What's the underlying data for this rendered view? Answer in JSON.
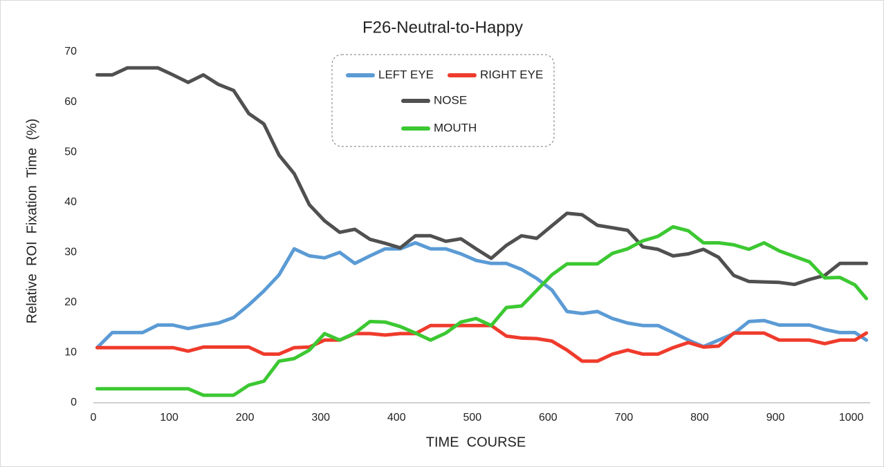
{
  "chart_data": {
    "type": "line",
    "title": "F26-Neutral-to-Happy",
    "xlabel": "TIME  COURSE",
    "ylabel": "Relative  ROI  Fixation  Time  (%)",
    "x": [
      5,
      25,
      45,
      65,
      85,
      105,
      125,
      145,
      165,
      185,
      205,
      225,
      245,
      265,
      285,
      305,
      325,
      345,
      365,
      385,
      405,
      425,
      445,
      465,
      485,
      505,
      525,
      545,
      565,
      585,
      605,
      625,
      645,
      665,
      685,
      705,
      725,
      745,
      765,
      785,
      805,
      825,
      845,
      865,
      885,
      905,
      925,
      945,
      965,
      985,
      1005,
      1020
    ],
    "series": [
      {
        "name": "LEFT EYE",
        "color": "#5b9bd5",
        "values": [
          11,
          14,
          14,
          14,
          15.5,
          15.5,
          14.8,
          15.4,
          15.9,
          17,
          19.5,
          22.3,
          25.5,
          30.7,
          29.3,
          28.9,
          30,
          27.8,
          29.3,
          30.7,
          30.7,
          31.9,
          30.7,
          30.7,
          29.7,
          28.4,
          27.8,
          27.8,
          26.6,
          24.8,
          22.5,
          18.2,
          17.8,
          18.2,
          16.8,
          15.9,
          15.4,
          15.4,
          14,
          12.5,
          11.2,
          12.5,
          13.8,
          16.2,
          16.4,
          15.5,
          15.5,
          15.5,
          14.6,
          14,
          14,
          12.5
        ]
      },
      {
        "name": "RIGHT EYE",
        "color": "#ef3b2c",
        "values": [
          11,
          11,
          11,
          11,
          11,
          11,
          10.3,
          11.1,
          11.1,
          11.1,
          11.1,
          9.7,
          9.7,
          11,
          11.1,
          12.5,
          12.5,
          13.8,
          13.8,
          13.5,
          13.8,
          13.8,
          15.4,
          15.4,
          15.4,
          15.4,
          15.4,
          13.3,
          12.9,
          12.8,
          12.3,
          10.5,
          8.3,
          8.3,
          9.7,
          10.5,
          9.7,
          9.7,
          11,
          12,
          11.1,
          11.3,
          13.9,
          13.9,
          13.9,
          12.5,
          12.5,
          12.5,
          11.8,
          12.5,
          12.5,
          13.9
        ]
      },
      {
        "name": "NOSE",
        "color": "#505050",
        "values": [
          65.4,
          65.4,
          66.8,
          66.8,
          66.8,
          65.4,
          63.9,
          65.4,
          63.5,
          62.3,
          57.7,
          55.6,
          49.4,
          45.7,
          39.5,
          36.3,
          34,
          34.6,
          32.6,
          31.8,
          30.9,
          33.3,
          33.3,
          32.2,
          32.7,
          30.7,
          28.8,
          31.4,
          33.3,
          32.8,
          35.3,
          37.8,
          37.5,
          35.4,
          34.9,
          34.4,
          31.1,
          30.6,
          29.3,
          29.7,
          30.6,
          29,
          25.4,
          24.2,
          24.1,
          24,
          23.6,
          24.6,
          25.4,
          27.8,
          27.8,
          27.8
        ]
      },
      {
        "name": "MOUTH",
        "color": "#3cc832",
        "values": [
          2.8,
          2.8,
          2.8,
          2.8,
          2.8,
          2.8,
          2.8,
          1.5,
          1.5,
          1.5,
          3.5,
          4.3,
          8.3,
          8.8,
          10.5,
          13.8,
          12.5,
          13.9,
          16.2,
          16.1,
          15.2,
          13.9,
          12.5,
          13.9,
          16.1,
          16.8,
          15.4,
          19,
          19.3,
          22.4,
          25.5,
          27.7,
          27.7,
          27.7,
          29.8,
          30.7,
          32.3,
          33.2,
          35.1,
          34.3,
          31.9,
          31.9,
          31.5,
          30.6,
          31.9,
          30.3,
          29.2,
          28.1,
          24.9,
          25,
          23.5,
          20.8
        ]
      }
    ],
    "xlim": [
      0,
      1025
    ],
    "xticks": [
      0,
      100,
      200,
      300,
      400,
      500,
      600,
      700,
      800,
      900,
      1000
    ],
    "ylim": [
      0,
      70
    ],
    "yticks": [
      0,
      10,
      20,
      30,
      40,
      50,
      60,
      70
    ],
    "grid": false,
    "legend": "top"
  }
}
